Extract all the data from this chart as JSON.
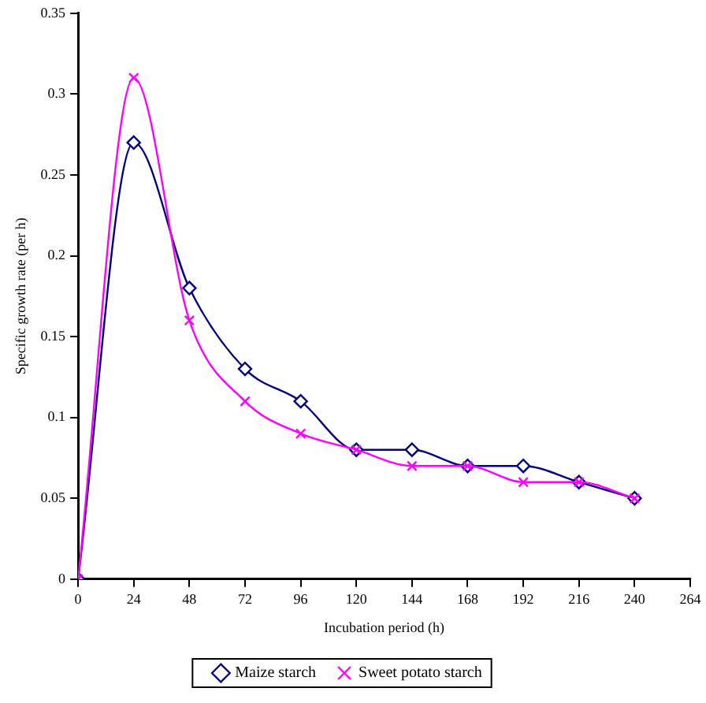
{
  "chart_data": {
    "type": "line",
    "xlabel": "Incubation period (h)",
    "ylabel": "Specific growth rate (per h)",
    "x": [
      0,
      24,
      48,
      72,
      96,
      120,
      144,
      168,
      192,
      216,
      240
    ],
    "series": [
      {
        "name": "Maize starch",
        "color": "#000080",
        "marker": "diamond",
        "values": [
          0,
          0.27,
          0.18,
          0.13,
          0.11,
          0.08,
          0.08,
          0.07,
          0.07,
          0.06,
          0.05
        ]
      },
      {
        "name": "Sweet potato starch",
        "color": "#ff00ff",
        "marker": "cross",
        "values": [
          0,
          0.31,
          0.16,
          0.11,
          0.09,
          0.08,
          0.07,
          0.07,
          0.06,
          0.06,
          0.05
        ]
      }
    ],
    "xlim": [
      0,
      264
    ],
    "xticks": [
      0,
      24,
      48,
      72,
      96,
      120,
      144,
      168,
      192,
      216,
      240,
      264
    ],
    "ylim": [
      0,
      0.35
    ],
    "yticks": [
      0,
      0.05,
      0.1,
      0.15,
      0.2,
      0.25,
      0.3,
      0.35
    ],
    "grid": false,
    "legend": "bottom",
    "line_style": "solid"
  }
}
